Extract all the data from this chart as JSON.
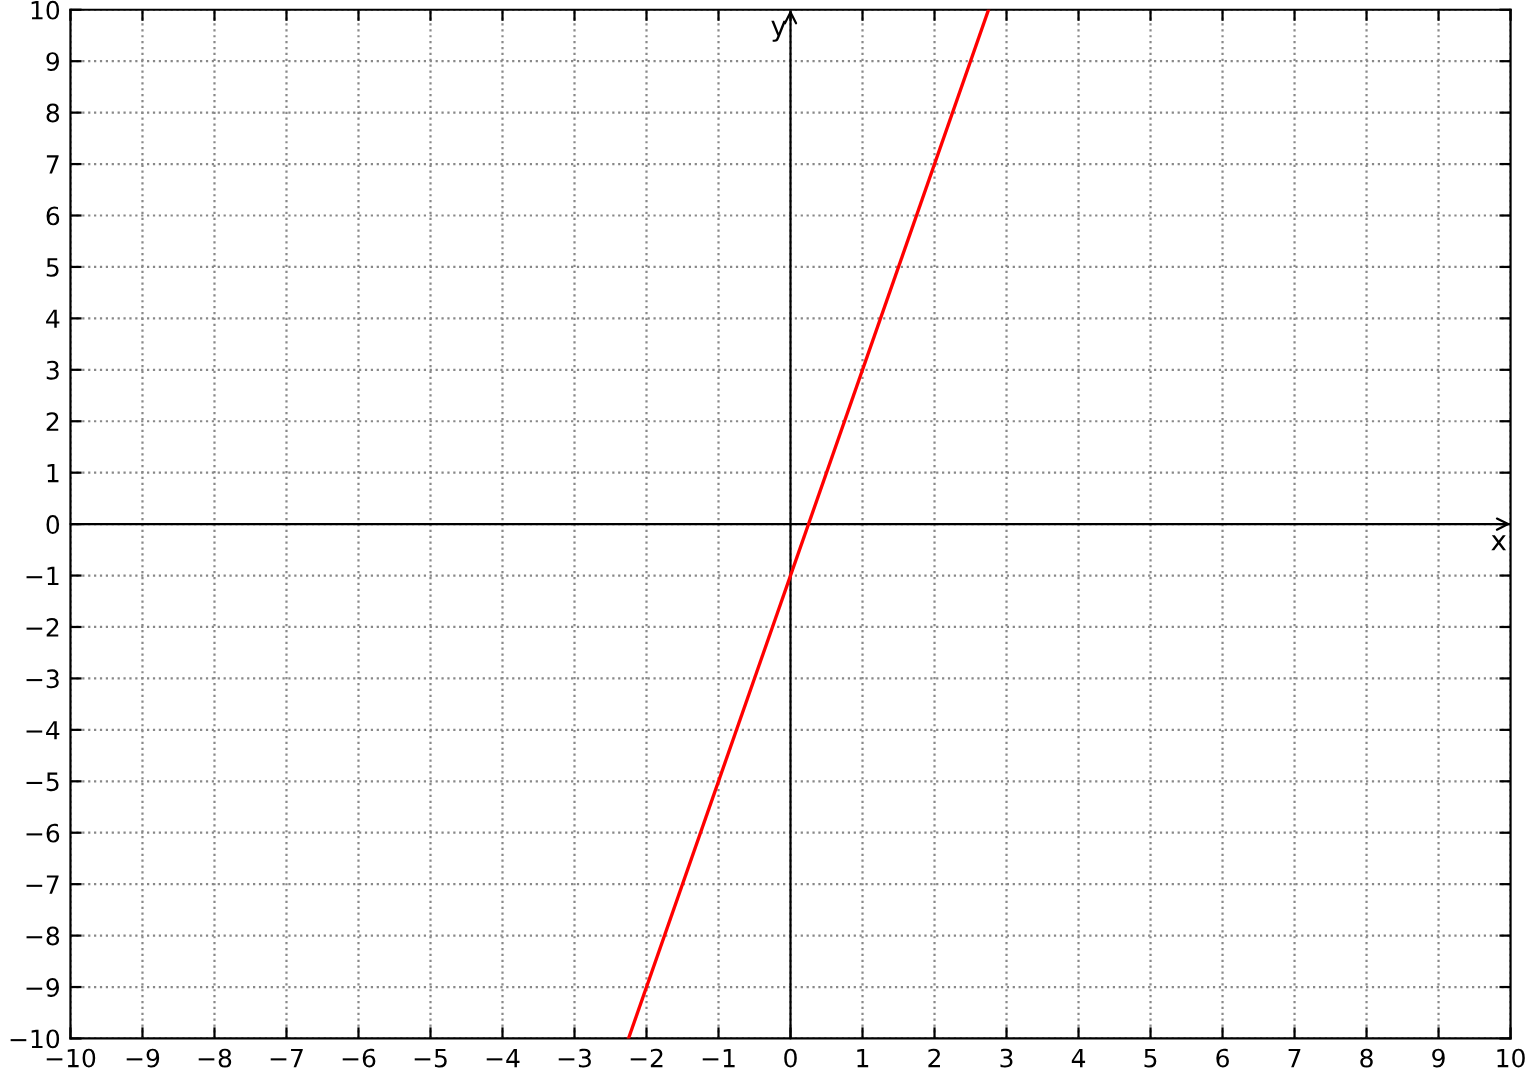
{
  "chart_data": {
    "type": "line",
    "x": [
      -2.25,
      2.75
    ],
    "series": [
      {
        "color": "#ff0000",
        "values": [
          -10,
          10
        ]
      }
    ],
    "xlim": [
      -10,
      10
    ],
    "ylim": [
      -10,
      10
    ],
    "xticks": [
      -10,
      -9,
      -8,
      -7,
      -6,
      -5,
      -4,
      -3,
      -2,
      -1,
      0,
      1,
      2,
      3,
      4,
      5,
      6,
      7,
      8,
      9,
      10
    ],
    "yticks": [
      -10,
      -9,
      -8,
      -7,
      -6,
      -5,
      -4,
      -3,
      -2,
      -1,
      0,
      1,
      2,
      3,
      4,
      5,
      6,
      7,
      8,
      9,
      10
    ],
    "grid": true,
    "marker": "none",
    "line_style": "solid",
    "ref_lines": [
      {
        "axis": "x",
        "value": 0,
        "label": "y",
        "color": "#000000"
      },
      {
        "axis": "y",
        "value": 0,
        "label": "x",
        "color": "#000000"
      }
    ]
  }
}
